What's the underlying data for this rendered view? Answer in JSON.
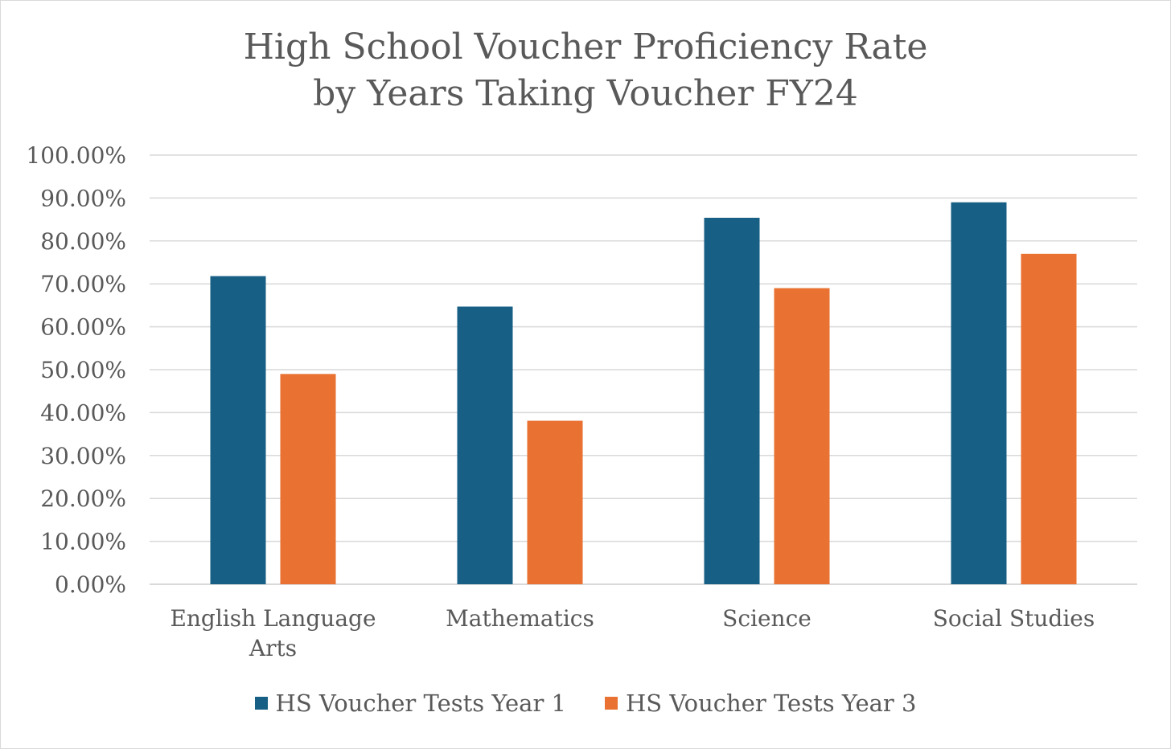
{
  "chart_data": {
    "type": "bar",
    "title": [
      "High School Voucher Proficiency Rate",
      "by Years Taking Voucher FY24"
    ],
    "categories": [
      [
        "English Language",
        "Arts"
      ],
      [
        "Mathematics"
      ],
      [
        "Science"
      ],
      [
        "Social Studies"
      ]
    ],
    "series": [
      {
        "name": "HS Voucher Tests Year 1",
        "color": "#175f84",
        "values": [
          71.8,
          64.7,
          85.4,
          89.0
        ]
      },
      {
        "name": "HS Voucher Tests Year 3",
        "color": "#e97132",
        "values": [
          49.0,
          38.1,
          69.0,
          77.0
        ]
      }
    ],
    "yticks": [
      "0.00%",
      "10.00%",
      "20.00%",
      "30.00%",
      "40.00%",
      "50.00%",
      "60.00%",
      "70.00%",
      "80.00%",
      "90.00%",
      "100.00%"
    ],
    "ylim": [
      0,
      100
    ],
    "grid": true,
    "legend_position": "bottom"
  }
}
